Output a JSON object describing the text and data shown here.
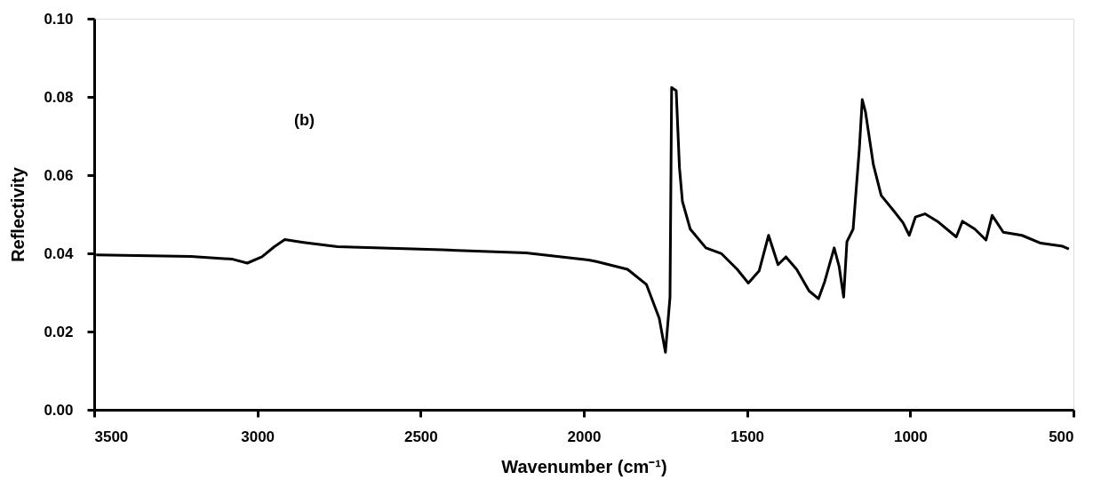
{
  "chart_data": {
    "type": "line",
    "xlabel": "Wavenumber (cm⁻¹)",
    "ylabel": "Reflectivity",
    "annotations": [
      "(b)"
    ],
    "x": [
      3494,
      3204,
      3076,
      3031,
      2986,
      2948,
      2916,
      2859,
      2755,
      2434,
      2177,
      1985,
      1961,
      1866,
      1808,
      1769,
      1750,
      1736,
      1731,
      1717,
      1707,
      1698,
      1674,
      1626,
      1578,
      1530,
      1496,
      1463,
      1434,
      1405,
      1381,
      1348,
      1310,
      1281,
      1262,
      1233,
      1218,
      1204,
      1194,
      1175,
      1156,
      1147,
      1137,
      1113,
      1089,
      1051,
      1022,
      1003,
      984,
      955,
      917,
      859,
      840,
      802,
      768,
      749,
      715,
      658,
      600,
      533,
      514
    ],
    "series": [
      {
        "color": "#000000",
        "values": [
          0.0396,
          0.0392,
          0.0385,
          0.0375,
          0.0391,
          0.0417,
          0.0435,
          0.0428,
          0.0417,
          0.0409,
          0.0401,
          0.0383,
          0.0379,
          0.0359,
          0.032,
          0.0234,
          0.0147,
          0.0288,
          0.0824,
          0.0816,
          0.0619,
          0.0533,
          0.0462,
          0.0414,
          0.0399,
          0.0359,
          0.0324,
          0.0355,
          0.0446,
          0.0371,
          0.0391,
          0.0359,
          0.0304,
          0.0284,
          0.0328,
          0.0414,
          0.0367,
          0.0288,
          0.043,
          0.0462,
          0.0667,
          0.0793,
          0.0761,
          0.0627,
          0.0548,
          0.0509,
          0.0478,
          0.0446,
          0.0493,
          0.0501,
          0.0482,
          0.0442,
          0.0482,
          0.0462,
          0.0434,
          0.0497,
          0.0454,
          0.0446,
          0.0426,
          0.0418,
          0.0411
        ]
      }
    ],
    "xlim": [
      3500,
      500
    ],
    "xticks": [
      3500,
      3000,
      2500,
      2000,
      1500,
      1000,
      500
    ],
    "ylim": [
      0,
      0.1
    ],
    "yticks": [
      {
        "value": 0,
        "label": "0.00"
      },
      {
        "value": 0.02,
        "label": "0.02"
      },
      {
        "value": 0.04,
        "label": "0.04"
      },
      {
        "value": 0.06,
        "label": "0.06"
      },
      {
        "value": 0.08,
        "label": "0.08"
      },
      {
        "value": 0.1,
        "label": "0.10"
      }
    ],
    "grid": false,
    "marker": "none",
    "line_style": "solid"
  }
}
